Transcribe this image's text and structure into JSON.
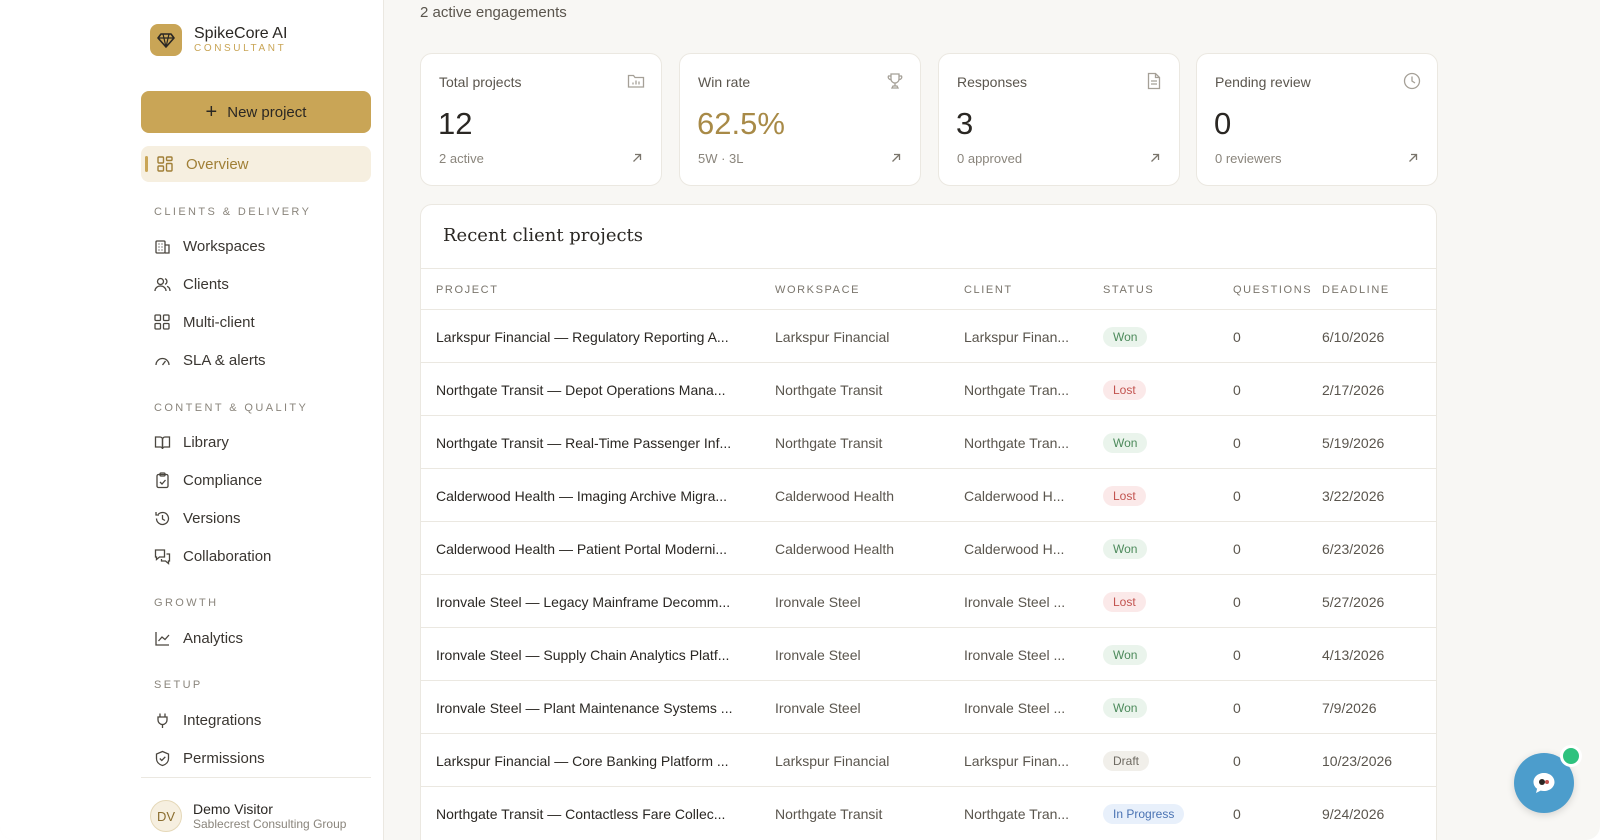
{
  "brand": {
    "name": "SpikeCore AI",
    "sub": "CONSULTANT"
  },
  "sidebar": {
    "new_project_label": "New project",
    "overview_label": "Overview",
    "sections": [
      {
        "label": "CLIENTS & DELIVERY",
        "items": [
          "Workspaces",
          "Clients",
          "Multi-client",
          "SLA & alerts"
        ]
      },
      {
        "label": "CONTENT & QUALITY",
        "items": [
          "Library",
          "Compliance",
          "Versions",
          "Collaboration"
        ]
      },
      {
        "label": "GROWTH",
        "items": [
          "Analytics"
        ]
      },
      {
        "label": "SETUP",
        "items": [
          "Integrations",
          "Permissions"
        ]
      }
    ],
    "user": {
      "initials": "DV",
      "name": "Demo Visitor",
      "org": "Sablecrest Consulting Group"
    }
  },
  "main": {
    "subtitle": "2 active engagements",
    "stats": [
      {
        "label": "Total projects",
        "value": "12",
        "sub": "2 active",
        "icon": "folder-icon"
      },
      {
        "label": "Win rate",
        "value": "62.5%",
        "sub": "5W · 3L",
        "icon": "trophy-icon",
        "accent": "#a88a47"
      },
      {
        "label": "Responses",
        "value": "3",
        "sub": "0 approved",
        "icon": "document-icon"
      },
      {
        "label": "Pending review",
        "value": "0",
        "sub": "0 reviewers",
        "icon": "clock-icon"
      }
    ],
    "table": {
      "title": "Recent client projects",
      "columns": [
        "PROJECT",
        "WORKSPACE",
        "CLIENT",
        "STATUS",
        "QUESTIONS",
        "DEADLINE"
      ],
      "rows": [
        {
          "project": "Larkspur Financial — Regulatory Reporting A...",
          "workspace": "Larkspur Financial",
          "client": "Larkspur Finan...",
          "status": "Won",
          "questions": "0",
          "deadline": "6/10/2026"
        },
        {
          "project": "Northgate Transit — Depot Operations Mana...",
          "workspace": "Northgate Transit",
          "client": "Northgate Tran...",
          "status": "Lost",
          "questions": "0",
          "deadline": "2/17/2026"
        },
        {
          "project": "Northgate Transit — Real-Time Passenger Inf...",
          "workspace": "Northgate Transit",
          "client": "Northgate Tran...",
          "status": "Won",
          "questions": "0",
          "deadline": "5/19/2026"
        },
        {
          "project": "Calderwood Health — Imaging Archive Migra...",
          "workspace": "Calderwood Health",
          "client": "Calderwood H...",
          "status": "Lost",
          "questions": "0",
          "deadline": "3/22/2026"
        },
        {
          "project": "Calderwood Health — Patient Portal Moderni...",
          "workspace": "Calderwood Health",
          "client": "Calderwood H...",
          "status": "Won",
          "questions": "0",
          "deadline": "6/23/2026"
        },
        {
          "project": "Ironvale Steel — Legacy Mainframe Decomm...",
          "workspace": "Ironvale Steel",
          "client": "Ironvale Steel ...",
          "status": "Lost",
          "questions": "0",
          "deadline": "5/27/2026"
        },
        {
          "project": "Ironvale Steel — Supply Chain Analytics Platf...",
          "workspace": "Ironvale Steel",
          "client": "Ironvale Steel ...",
          "status": "Won",
          "questions": "0",
          "deadline": "4/13/2026"
        },
        {
          "project": "Ironvale Steel — Plant Maintenance Systems ...",
          "workspace": "Ironvale Steel",
          "client": "Ironvale Steel ...",
          "status": "Won",
          "questions": "0",
          "deadline": "7/9/2026"
        },
        {
          "project": "Larkspur Financial — Core Banking Platform ...",
          "workspace": "Larkspur Financial",
          "client": "Larkspur Finan...",
          "status": "Draft",
          "questions": "0",
          "deadline": "10/23/2026"
        },
        {
          "project": "Northgate Transit — Contactless Fare Collec...",
          "workspace": "Northgate Transit",
          "client": "Northgate Tran...",
          "status": "In Progress",
          "questions": "0",
          "deadline": "9/24/2026"
        }
      ]
    }
  },
  "colors": {
    "accent": "#c9a556",
    "won": "#4c8a5b",
    "lost": "#c2534f",
    "progress": "#4a73b3",
    "help": "#4c9dcc"
  }
}
